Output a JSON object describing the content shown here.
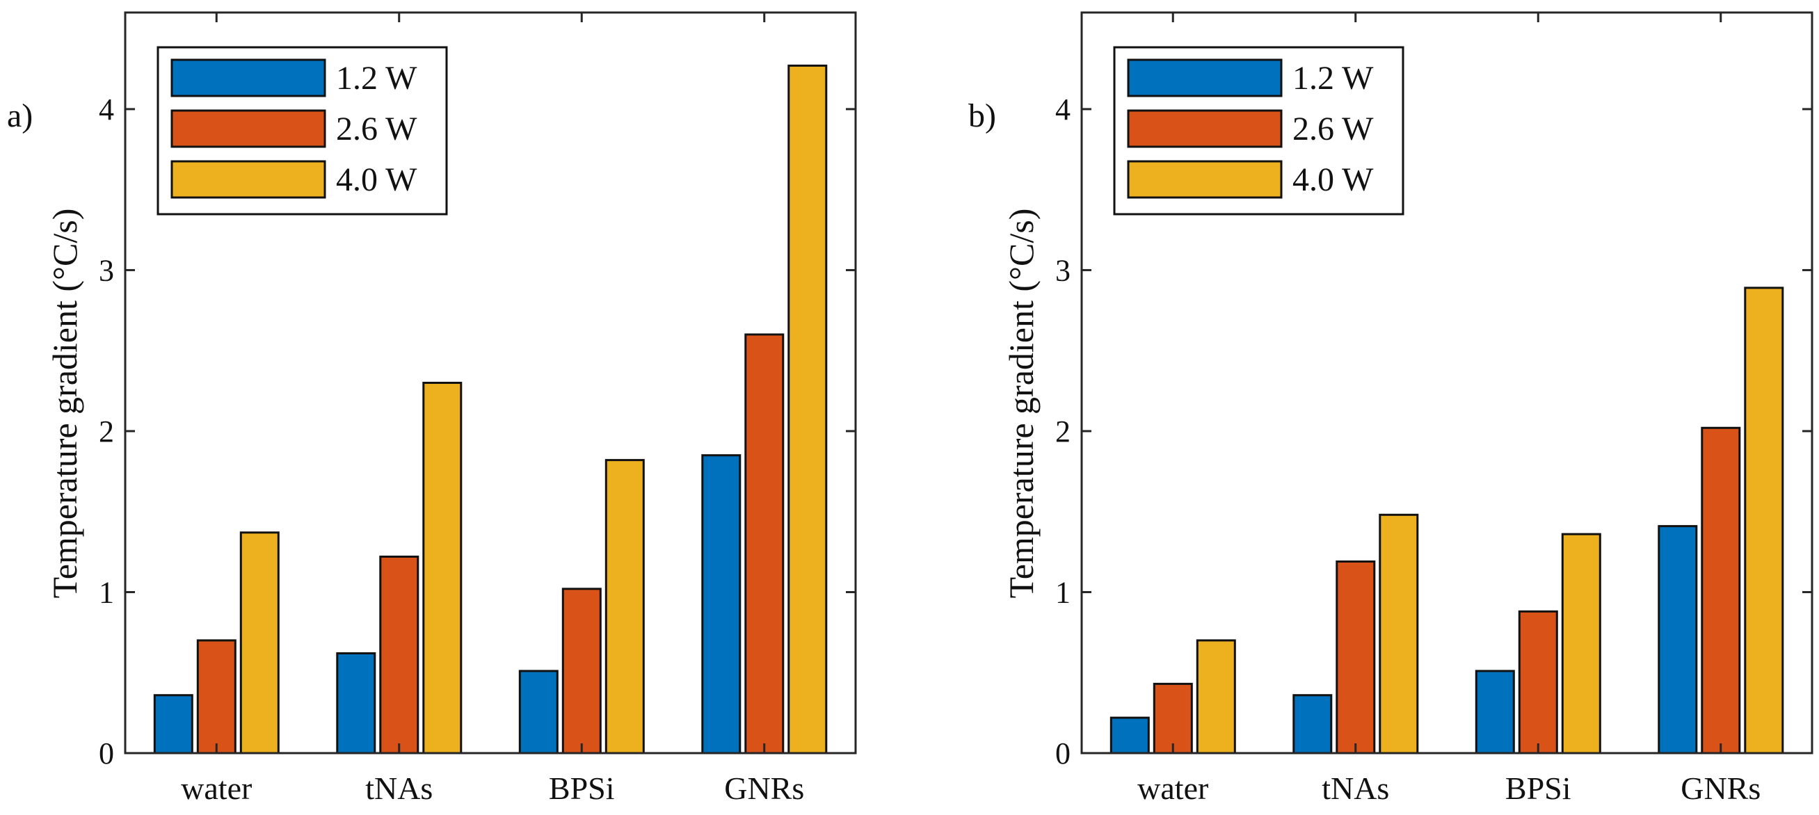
{
  "colors": {
    "series": [
      "#0072BD",
      "#D95319",
      "#EDB120"
    ],
    "axis": "#262626",
    "bar_edge": "#111111",
    "background": "#ffffff"
  },
  "chart_data": [
    {
      "type": "bar",
      "panel_label": "a)",
      "ylabel": "Temperature gradient (°C/s)",
      "xlabel": "",
      "ylim": [
        0,
        4.6
      ],
      "yticks": [
        0,
        1,
        2,
        3,
        4
      ],
      "yticklabels": [
        "0",
        "1",
        "2",
        "3",
        "4"
      ],
      "categories": [
        "water",
        "tNAs",
        "BPSi",
        "GNRs"
      ],
      "legend_placement": "top-left",
      "series": [
        {
          "name": "1.2 W",
          "values": [
            0.36,
            0.62,
            0.51,
            1.85
          ]
        },
        {
          "name": "2.6 W",
          "values": [
            0.7,
            1.22,
            1.02,
            2.6
          ]
        },
        {
          "name": "4.0 W",
          "values": [
            1.37,
            2.3,
            1.82,
            4.27
          ]
        }
      ]
    },
    {
      "type": "bar",
      "panel_label": "b)",
      "ylabel": "Temperature gradient (°C/s)",
      "xlabel": "",
      "ylim": [
        0,
        4.6
      ],
      "yticks": [
        0,
        1,
        2,
        3,
        4
      ],
      "yticklabels": [
        "0",
        "1",
        "2",
        "3",
        "4"
      ],
      "categories": [
        "water",
        "tNAs",
        "BPSi",
        "GNRs"
      ],
      "legend_placement": "top-left",
      "series": [
        {
          "name": "1.2 W",
          "values": [
            0.22,
            0.36,
            0.51,
            1.41
          ]
        },
        {
          "name": "2.6 W",
          "values": [
            0.43,
            1.19,
            0.88,
            2.02
          ]
        },
        {
          "name": "4.0 W",
          "values": [
            0.7,
            1.48,
            1.36,
            2.89
          ]
        }
      ]
    }
  ]
}
